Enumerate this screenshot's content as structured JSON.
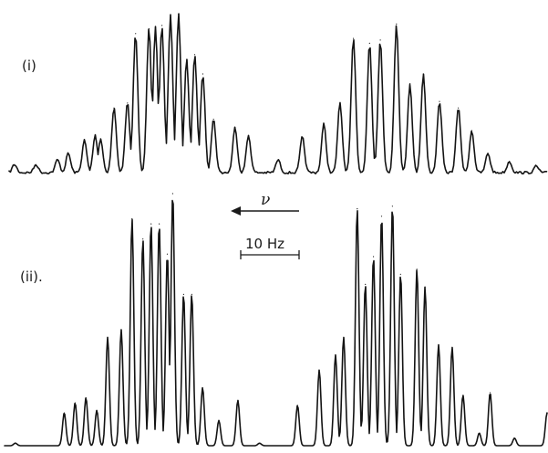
{
  "chart_data": [
    {
      "type": "line",
      "label": "(i)",
      "x_axis": {
        "direction": "increasing to the left",
        "symbol": "ν"
      },
      "scale_bar": "10 Hz",
      "peaks": [
        {
          "x": 0.01,
          "y": 0.05
        },
        {
          "x": 0.05,
          "y": 0.05
        },
        {
          "x": 0.09,
          "y": 0.08
        },
        {
          "x": 0.11,
          "y": 0.12
        },
        {
          "x": 0.14,
          "y": 0.2
        },
        {
          "x": 0.16,
          "y": 0.23
        },
        {
          "x": 0.17,
          "y": 0.21
        },
        {
          "x": 0.195,
          "y": 0.4
        },
        {
          "x": 0.22,
          "y": 0.43
        },
        {
          "x": 0.235,
          "y": 0.86
        },
        {
          "x": 0.26,
          "y": 0.89
        },
        {
          "x": 0.272,
          "y": 0.9
        },
        {
          "x": 0.284,
          "y": 0.91
        },
        {
          "x": 0.3,
          "y": 0.97
        },
        {
          "x": 0.315,
          "y": 0.98
        },
        {
          "x": 0.33,
          "y": 0.7
        },
        {
          "x": 0.345,
          "y": 0.73
        },
        {
          "x": 0.36,
          "y": 0.61
        },
        {
          "x": 0.38,
          "y": 0.33
        },
        {
          "x": 0.42,
          "y": 0.28
        },
        {
          "x": 0.445,
          "y": 0.23
        },
        {
          "x": 0.5,
          "y": 0.08
        },
        {
          "x": 0.545,
          "y": 0.22
        },
        {
          "x": 0.585,
          "y": 0.3
        },
        {
          "x": 0.615,
          "y": 0.43
        },
        {
          "x": 0.64,
          "y": 0.83
        },
        {
          "x": 0.67,
          "y": 0.8
        },
        {
          "x": 0.69,
          "y": 0.82
        },
        {
          "x": 0.72,
          "y": 0.92
        },
        {
          "x": 0.745,
          "y": 0.55
        },
        {
          "x": 0.77,
          "y": 0.61
        },
        {
          "x": 0.8,
          "y": 0.44
        },
        {
          "x": 0.835,
          "y": 0.4
        },
        {
          "x": 0.86,
          "y": 0.26
        },
        {
          "x": 0.89,
          "y": 0.12
        },
        {
          "x": 0.93,
          "y": 0.07
        },
        {
          "x": 0.98,
          "y": 0.04
        }
      ]
    },
    {
      "type": "line",
      "label": "(ii).",
      "peaks": [
        {
          "x": 0.02,
          "y": 0.01
        },
        {
          "x": 0.11,
          "y": 0.13
        },
        {
          "x": 0.13,
          "y": 0.17
        },
        {
          "x": 0.15,
          "y": 0.19
        },
        {
          "x": 0.17,
          "y": 0.14
        },
        {
          "x": 0.19,
          "y": 0.43
        },
        {
          "x": 0.215,
          "y": 0.46
        },
        {
          "x": 0.235,
          "y": 0.9
        },
        {
          "x": 0.255,
          "y": 0.82
        },
        {
          "x": 0.27,
          "y": 0.88
        },
        {
          "x": 0.285,
          "y": 0.88
        },
        {
          "x": 0.3,
          "y": 0.76
        },
        {
          "x": 0.31,
          "y": 1.0
        },
        {
          "x": 0.33,
          "y": 0.6
        },
        {
          "x": 0.345,
          "y": 0.6
        },
        {
          "x": 0.365,
          "y": 0.23
        },
        {
          "x": 0.395,
          "y": 0.1
        },
        {
          "x": 0.43,
          "y": 0.18
        },
        {
          "x": 0.47,
          "y": 0.01
        },
        {
          "x": 0.54,
          "y": 0.16
        },
        {
          "x": 0.58,
          "y": 0.3
        },
        {
          "x": 0.61,
          "y": 0.36
        },
        {
          "x": 0.625,
          "y": 0.43
        },
        {
          "x": 0.65,
          "y": 0.94
        },
        {
          "x": 0.665,
          "y": 0.64
        },
        {
          "x": 0.68,
          "y": 0.75
        },
        {
          "x": 0.695,
          "y": 0.91
        },
        {
          "x": 0.715,
          "y": 0.95
        },
        {
          "x": 0.73,
          "y": 0.68
        },
        {
          "x": 0.76,
          "y": 0.7
        },
        {
          "x": 0.775,
          "y": 0.63
        },
        {
          "x": 0.8,
          "y": 0.4
        },
        {
          "x": 0.825,
          "y": 0.39
        },
        {
          "x": 0.845,
          "y": 0.2
        },
        {
          "x": 0.875,
          "y": 0.05
        },
        {
          "x": 0.895,
          "y": 0.21
        },
        {
          "x": 0.94,
          "y": 0.03
        },
        {
          "x": 1.0,
          "y": 0.13
        }
      ]
    }
  ],
  "colors": {
    "trace": "#141414",
    "background": "#ffffff"
  }
}
